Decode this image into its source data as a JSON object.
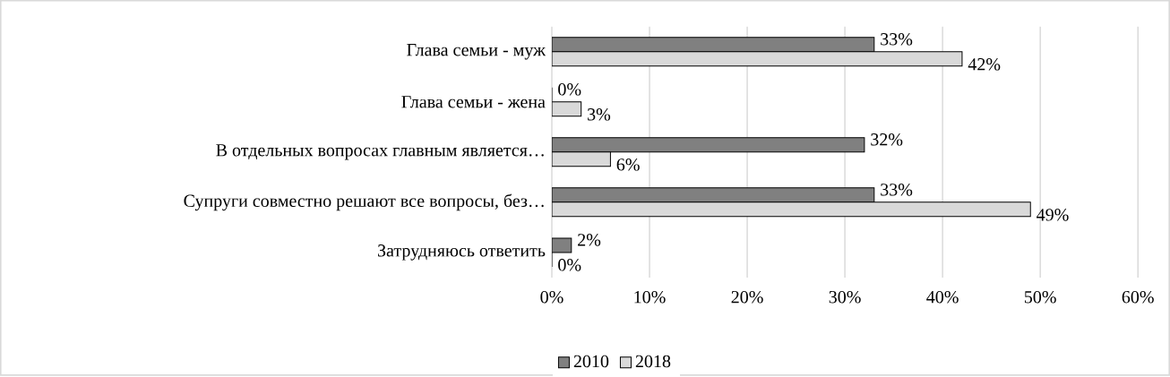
{
  "chart_data": {
    "type": "bar",
    "orientation": "horizontal",
    "categories": [
      "Глава семьи - муж",
      "Глава семьи - жена",
      "В отдельных вопросах главным является…",
      "Супруги совместно решают все вопросы, без…",
      "Затрудняюсь ответить"
    ],
    "series": [
      {
        "name": "2010",
        "color": "#808080",
        "values": [
          33,
          0,
          32,
          33,
          2
        ],
        "value_labels": [
          "33%",
          "0%",
          "32%",
          "33%",
          "2%"
        ]
      },
      {
        "name": "2018",
        "color": "#d9d9d9",
        "values": [
          42,
          3,
          6,
          49,
          0
        ],
        "value_labels": [
          "42%",
          "3%",
          "6%",
          "49%",
          "0%"
        ]
      }
    ],
    "xlim": [
      0,
      60
    ],
    "xticks": [
      {
        "value": 0,
        "label": "0%"
      },
      {
        "value": 10,
        "label": "10%"
      },
      {
        "value": 20,
        "label": "20%"
      },
      {
        "value": 30,
        "label": "30%"
      },
      {
        "value": 40,
        "label": "40%"
      },
      {
        "value": 50,
        "label": "50%"
      },
      {
        "value": 60,
        "label": "60%"
      }
    ],
    "grid": "x",
    "legend": "bottom"
  }
}
